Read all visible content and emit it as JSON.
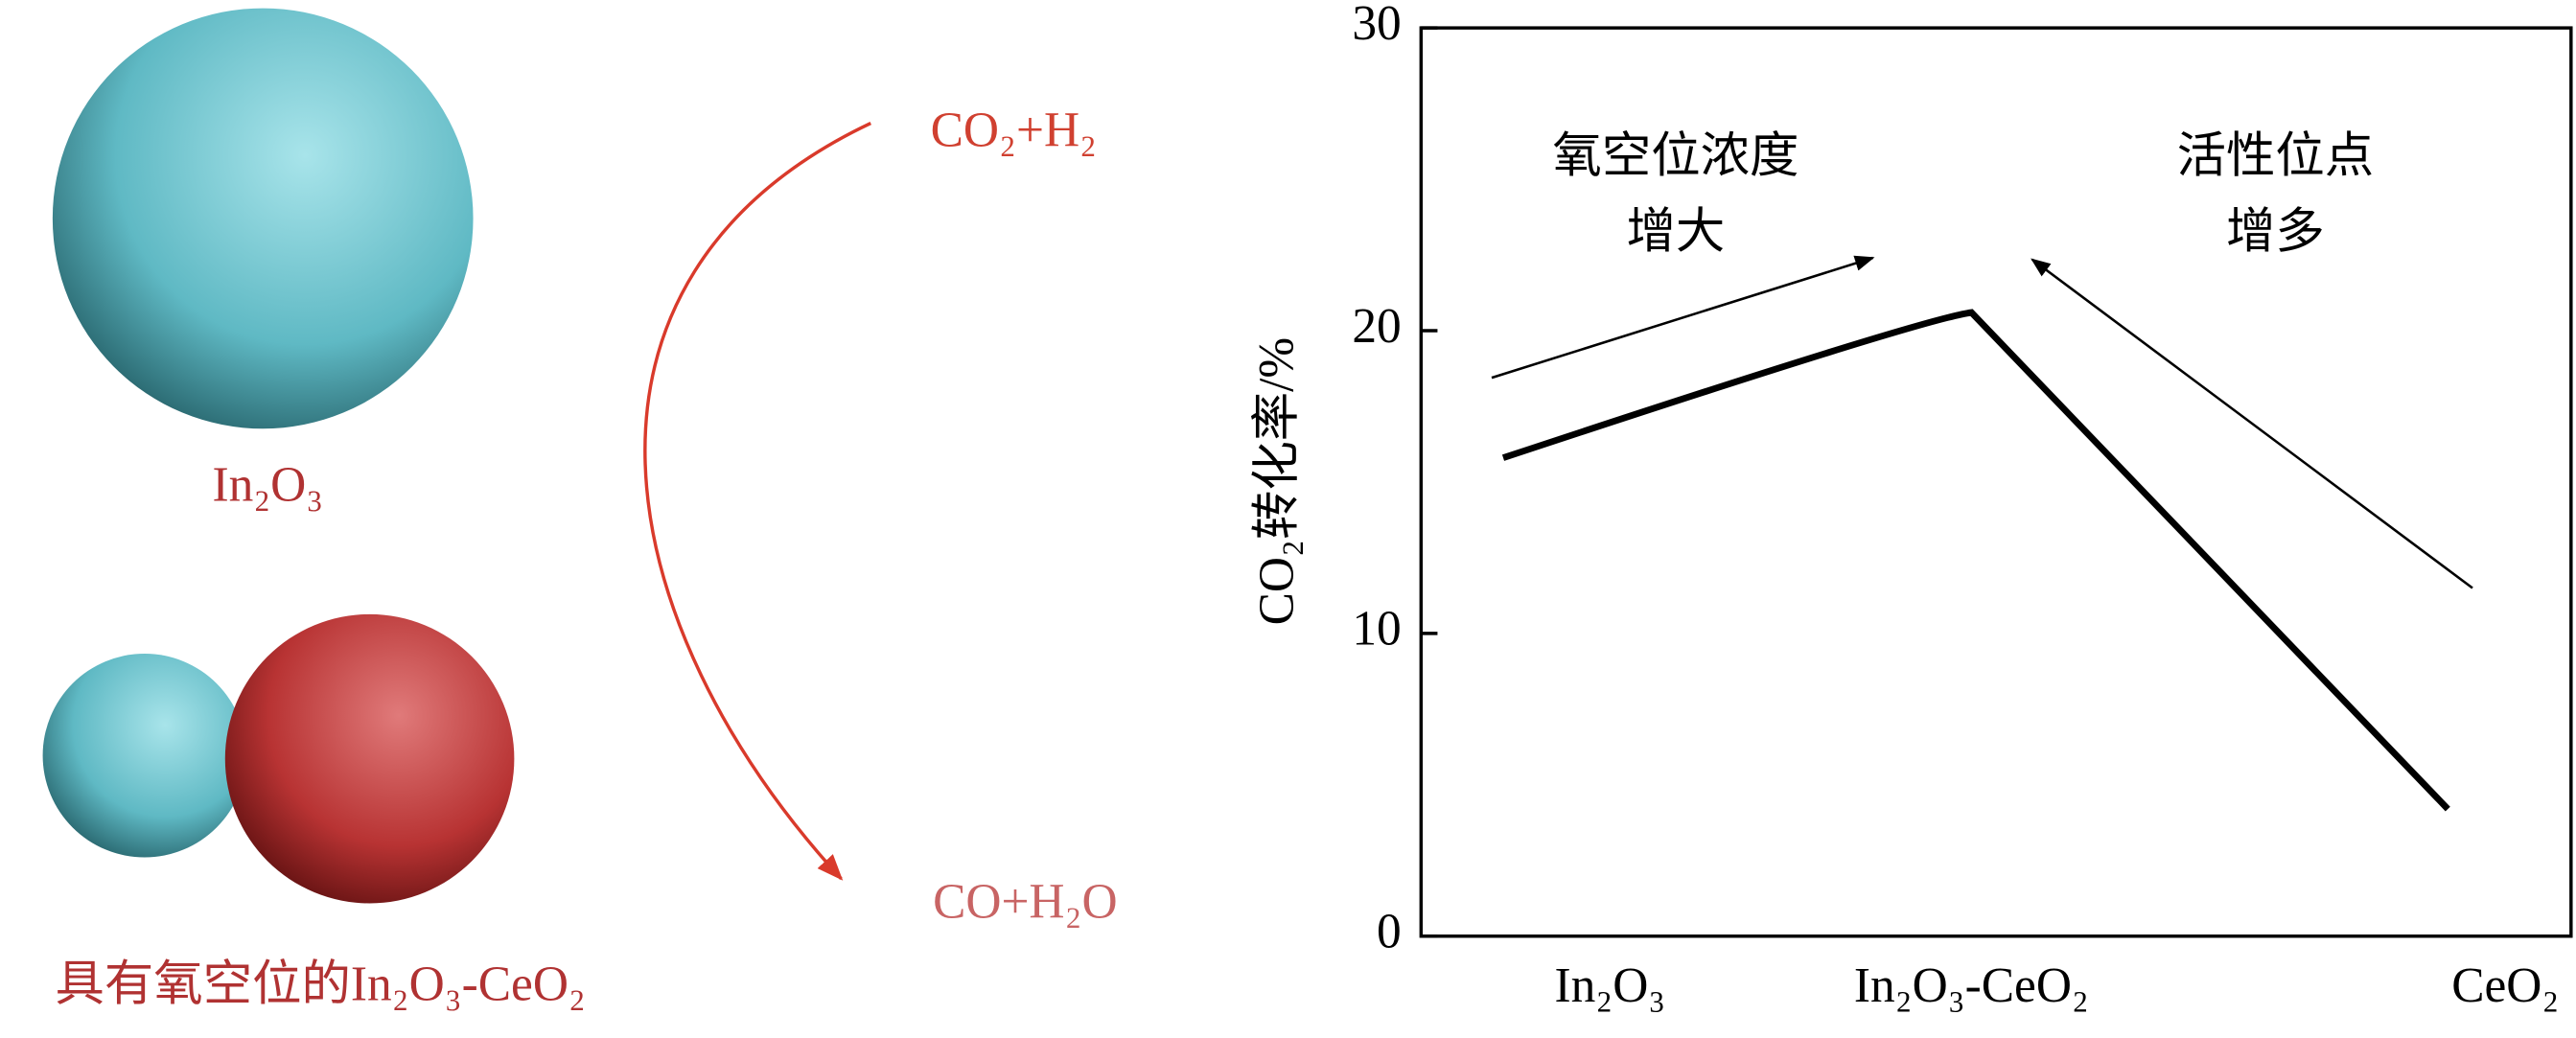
{
  "diagram": {
    "single_label": "In₂O₃",
    "composite_label": "具有氧空位的In₂O₃-CeO₂",
    "reactant": "CO₂+H₂",
    "product": "CO+H₂O"
  },
  "chart_data": {
    "type": "line",
    "ylabel": "CO₂转化率/%",
    "categories": [
      "In₂O₃",
      "In₂O₃-CeO₂",
      "CeO₂"
    ],
    "values": [
      15.8,
      20.6,
      4.2
    ],
    "color": "#000000",
    "ylim": [
      0,
      30
    ],
    "yticks": [
      0,
      10,
      20,
      30
    ],
    "annotations": [
      {
        "lines": [
          "氧空位浓度",
          "增大"
        ]
      },
      {
        "lines": [
          "活性位点",
          "增多"
        ]
      }
    ]
  }
}
